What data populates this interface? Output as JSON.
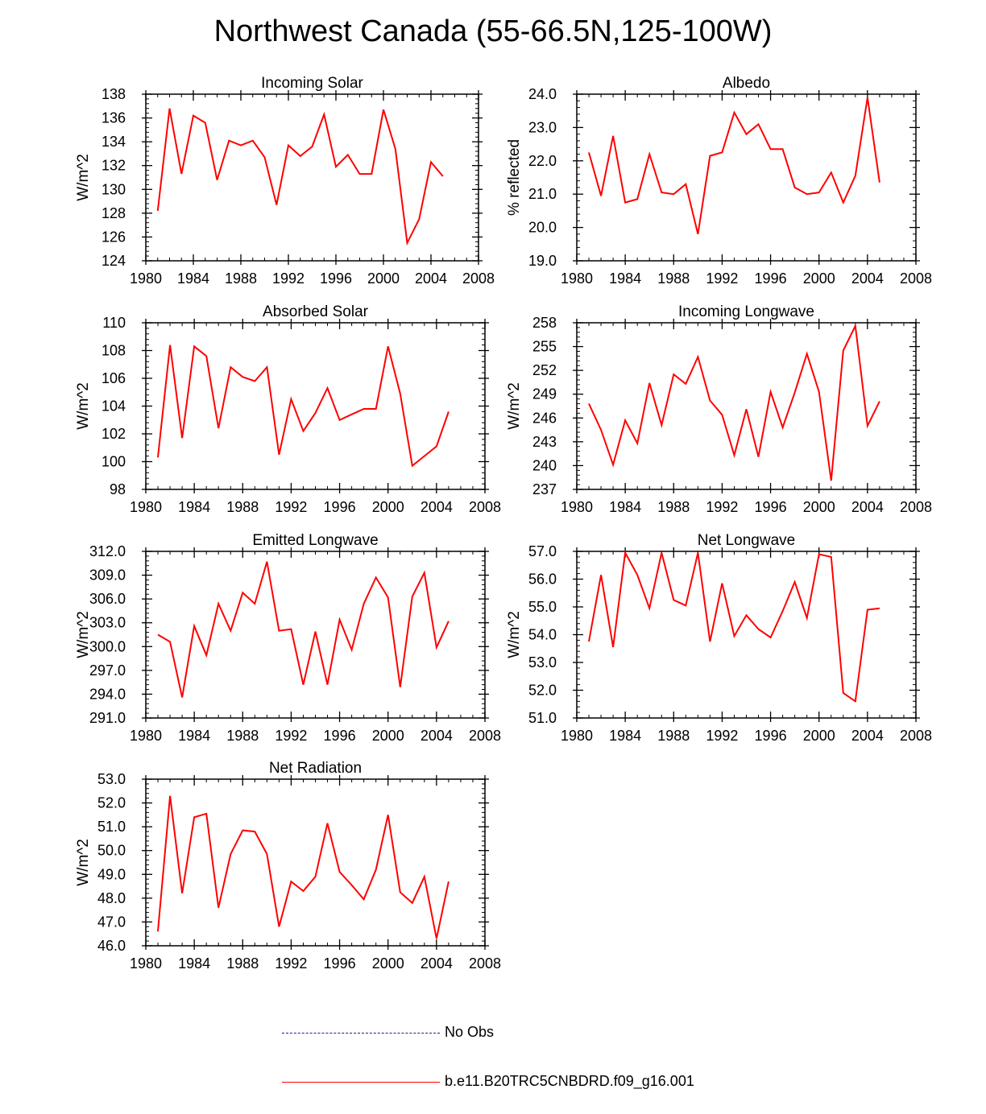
{
  "title": "Northwest Canada (55-66.5N,125-100W)",
  "colors": {
    "model": "#ff0000",
    "obs": "#1a1aa8",
    "axis": "#000000"
  },
  "legend": {
    "obs_label": "No Obs",
    "model_label": "b.e11.B20TRC5CNBDRD.f09_g16.001"
  },
  "chart_data": [
    {
      "type": "line",
      "title": "Incoming Solar",
      "xlabel": "",
      "ylabel": "W/m^2",
      "xlim": [
        1980,
        2008
      ],
      "xticks": [
        "1980",
        "1984",
        "1988",
        "1992",
        "1996",
        "2000",
        "2004",
        "2008"
      ],
      "ylim": [
        124,
        138
      ],
      "yticks": [
        "124",
        "126",
        "128",
        "130",
        "132",
        "134",
        "136",
        "138"
      ],
      "x": [
        1981,
        1982,
        1983,
        1984,
        1985,
        1986,
        1987,
        1988,
        1989,
        1990,
        1991,
        1992,
        1993,
        1994,
        1995,
        1996,
        1997,
        1998,
        1999,
        2000,
        2001,
        2002,
        2003,
        2004,
        2005
      ],
      "series": [
        {
          "name": "b.e11.B20TRC5CNBDRD.f09_g16.001",
          "values": [
            128.2,
            136.8,
            131.3,
            136.2,
            135.6,
            130.8,
            134.1,
            133.7,
            134.1,
            132.7,
            128.7,
            133.7,
            132.8,
            133.6,
            136.3,
            131.9,
            132.9,
            131.3,
            131.3,
            136.7,
            133.4,
            125.5,
            127.5,
            132.3,
            131.1
          ]
        }
      ]
    },
    {
      "type": "line",
      "title": "Albedo",
      "xlabel": "",
      "ylabel": "% reflected",
      "xlim": [
        1980,
        2008
      ],
      "xticks": [
        "1980",
        "1984",
        "1988",
        "1992",
        "1996",
        "2000",
        "2004",
        "2008"
      ],
      "ylim": [
        19,
        24
      ],
      "yticks": [
        "19.0",
        "20.0",
        "21.0",
        "22.0",
        "23.0",
        "24.0"
      ],
      "x": [
        1981,
        1982,
        1983,
        1984,
        1985,
        1986,
        1987,
        1988,
        1989,
        1990,
        1991,
        1992,
        1993,
        1994,
        1995,
        1996,
        1997,
        1998,
        1999,
        2000,
        2001,
        2002,
        2003,
        2004,
        2005
      ],
      "series": [
        {
          "name": "b.e11.B20TRC5CNBDRD.f09_g16.001",
          "values": [
            22.25,
            20.95,
            22.75,
            20.75,
            20.85,
            22.2,
            21.05,
            21.0,
            21.3,
            19.8,
            22.15,
            22.25,
            23.45,
            22.8,
            23.1,
            22.35,
            22.35,
            21.2,
            21.0,
            21.05,
            21.65,
            20.75,
            21.55,
            23.9,
            21.35
          ]
        }
      ]
    },
    {
      "type": "line",
      "title": "Absorbed Solar",
      "xlabel": "",
      "ylabel": "W/m^2",
      "xlim": [
        1980,
        2008
      ],
      "xticks": [
        "1980",
        "1984",
        "1988",
        "1992",
        "1996",
        "2000",
        "2004",
        "2008"
      ],
      "ylim": [
        98,
        110
      ],
      "yticks": [
        "98",
        "100",
        "102",
        "104",
        "106",
        "108",
        "110"
      ],
      "x": [
        1981,
        1982,
        1983,
        1984,
        1985,
        1986,
        1987,
        1988,
        1989,
        1990,
        1991,
        1992,
        1993,
        1994,
        1995,
        1996,
        1997,
        1998,
        1999,
        2000,
        2001,
        2002,
        2003,
        2004,
        2005
      ],
      "series": [
        {
          "name": "b.e11.B20TRC5CNBDRD.f09_g16.001",
          "values": [
            100.3,
            108.4,
            101.7,
            108.3,
            107.6,
            102.4,
            106.8,
            106.1,
            105.8,
            106.8,
            100.5,
            104.5,
            102.2,
            103.5,
            105.3,
            103.0,
            103.4,
            103.8,
            103.8,
            108.3,
            104.9,
            99.7,
            100.4,
            101.1,
            103.6
          ]
        }
      ]
    },
    {
      "type": "line",
      "title": "Incoming Longwave",
      "xlabel": "",
      "ylabel": "W/m^2",
      "xlim": [
        1980,
        2008
      ],
      "xticks": [
        "1980",
        "1984",
        "1988",
        "1992",
        "1996",
        "2000",
        "2004",
        "2008"
      ],
      "ylim": [
        237,
        258
      ],
      "yticks": [
        "237",
        "240",
        "243",
        "246",
        "249",
        "252",
        "255",
        "258"
      ],
      "x": [
        1981,
        1982,
        1983,
        1984,
        1985,
        1986,
        1987,
        1988,
        1989,
        1990,
        1991,
        1992,
        1993,
        1994,
        1995,
        1996,
        1997,
        1998,
        1999,
        2000,
        2001,
        2002,
        2003,
        2004,
        2005
      ],
      "series": [
        {
          "name": "b.e11.B20TRC5CNBDRD.f09_g16.001",
          "values": [
            247.8,
            244.5,
            240.1,
            245.7,
            242.8,
            250.4,
            245.1,
            251.5,
            250.3,
            253.7,
            248.2,
            246.4,
            241.3,
            247.1,
            241.1,
            249.3,
            244.8,
            249.2,
            254.1,
            249.3,
            238.1,
            254.5,
            257.6,
            245.0,
            248.1
          ]
        }
      ]
    },
    {
      "type": "line",
      "title": "Emitted Longwave",
      "xlabel": "",
      "ylabel": "W/m^2",
      "xlim": [
        1980,
        2008
      ],
      "xticks": [
        "1980",
        "1984",
        "1988",
        "1992",
        "1996",
        "2000",
        "2004",
        "2008"
      ],
      "ylim": [
        291,
        312
      ],
      "yticks": [
        "291.0",
        "294.0",
        "297.0",
        "300.0",
        "303.0",
        "306.0",
        "309.0",
        "312.0"
      ],
      "x": [
        1981,
        1982,
        1983,
        1984,
        1985,
        1986,
        1987,
        1988,
        1989,
        1990,
        1991,
        1992,
        1993,
        1994,
        1995,
        1996,
        1997,
        1998,
        1999,
        2000,
        2001,
        2002,
        2003,
        2004,
        2005
      ],
      "series": [
        {
          "name": "b.e11.B20TRC5CNBDRD.f09_g16.001",
          "values": [
            301.5,
            300.6,
            293.6,
            302.6,
            298.9,
            305.4,
            302.0,
            306.8,
            305.4,
            310.7,
            302.0,
            302.2,
            295.2,
            301.9,
            295.2,
            303.4,
            299.6,
            305.4,
            308.7,
            306.2,
            294.9,
            306.3,
            309.3,
            299.9,
            303.2
          ]
        }
      ]
    },
    {
      "type": "line",
      "title": "Net Longwave",
      "xlabel": "",
      "ylabel": "W/m^2",
      "xlim": [
        1980,
        2008
      ],
      "xticks": [
        "1980",
        "1984",
        "1988",
        "1992",
        "1996",
        "2000",
        "2004",
        "2008"
      ],
      "ylim": [
        51,
        57
      ],
      "yticks": [
        "51.0",
        "52.0",
        "53.0",
        "54.0",
        "55.0",
        "56.0",
        "57.0"
      ],
      "x": [
        1981,
        1982,
        1983,
        1984,
        1985,
        1986,
        1987,
        1988,
        1989,
        1990,
        1991,
        1992,
        1993,
        1994,
        1995,
        1996,
        1997,
        1998,
        1999,
        2000,
        2001,
        2002,
        2003,
        2004,
        2005
      ],
      "series": [
        {
          "name": "b.e11.B20TRC5CNBDRD.f09_g16.001",
          "values": [
            53.75,
            56.15,
            53.55,
            56.95,
            56.15,
            54.95,
            56.95,
            55.25,
            55.05,
            56.95,
            53.75,
            55.85,
            53.95,
            54.7,
            54.2,
            53.9,
            54.85,
            55.9,
            54.6,
            56.9,
            56.8,
            51.9,
            51.6,
            54.9,
            54.95
          ]
        }
      ]
    },
    {
      "type": "line",
      "title": "Net Radiation",
      "xlabel": "",
      "ylabel": "W/m^2",
      "xlim": [
        1980,
        2008
      ],
      "xticks": [
        "1980",
        "1984",
        "1988",
        "1992",
        "1996",
        "2000",
        "2004",
        "2008"
      ],
      "ylim": [
        46,
        53
      ],
      "yticks": [
        "46.0",
        "47.0",
        "48.0",
        "49.0",
        "50.0",
        "51.0",
        "52.0",
        "53.0"
      ],
      "x": [
        1981,
        1982,
        1983,
        1984,
        1985,
        1986,
        1987,
        1988,
        1989,
        1990,
        1991,
        1992,
        1993,
        1994,
        1995,
        1996,
        1997,
        1998,
        1999,
        2000,
        2001,
        2002,
        2003,
        2004,
        2005
      ],
      "series": [
        {
          "name": "b.e11.B20TRC5CNBDRD.f09_g16.001",
          "values": [
            46.6,
            52.3,
            48.2,
            51.4,
            51.55,
            47.6,
            49.85,
            50.85,
            50.8,
            49.85,
            46.8,
            48.7,
            48.3,
            48.9,
            51.15,
            49.1,
            48.55,
            47.95,
            49.2,
            51.5,
            48.25,
            47.8,
            48.9,
            46.3,
            48.7
          ]
        }
      ]
    }
  ]
}
